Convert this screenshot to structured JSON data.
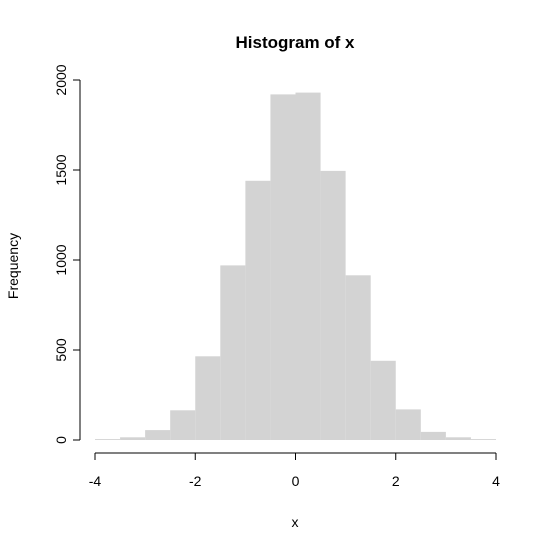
{
  "chart_data": {
    "type": "histogram",
    "title": "Histogram of x",
    "xlabel": "x",
    "ylabel": "Frequency",
    "bins": [
      -4,
      -3.5,
      -3,
      -2.5,
      -2,
      -1.5,
      -1,
      -0.5,
      0,
      0.5,
      1,
      1.5,
      2,
      2.5,
      3,
      3.5,
      4
    ],
    "values": [
      5,
      15,
      55,
      165,
      465,
      970,
      1440,
      1920,
      1930,
      1495,
      915,
      440,
      170,
      45,
      15,
      5
    ],
    "color": "#d3d3d3",
    "xlim": [
      -4,
      4
    ],
    "xticks": [
      -4,
      -2,
      0,
      2,
      4
    ],
    "ylim": [
      0,
      2000
    ],
    "yticks": [
      0,
      500,
      1000,
      1500,
      2000
    ]
  }
}
